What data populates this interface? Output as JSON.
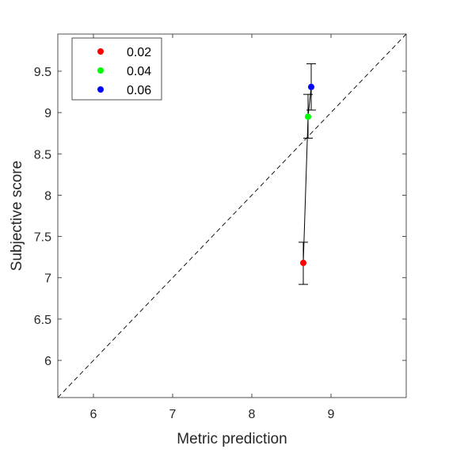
{
  "chart_data": {
    "type": "scatter",
    "xlabel": "Metric prediction",
    "ylabel": "Subjective score",
    "xlim": [
      5.55,
      9.95
    ],
    "ylim": [
      5.55,
      9.95
    ],
    "xticks": [
      6,
      7,
      8,
      9
    ],
    "yticks": [
      6,
      6.5,
      7,
      7.5,
      8,
      8.5,
      9,
      9.5
    ],
    "xtick_labels": [
      "6",
      "7",
      "8",
      "9"
    ],
    "ytick_labels": [
      "6",
      "6.5",
      "7",
      "7.5",
      "8",
      "8.5",
      "9",
      "9.5"
    ],
    "grid": false,
    "legend_position": "top-left",
    "series": [
      {
        "name": "0.02",
        "color": "#ff0000",
        "x": 8.65,
        "y": 7.18,
        "err_low": 6.92,
        "err_high": 7.43
      },
      {
        "name": "0.04",
        "color": "#00ff00",
        "x": 8.71,
        "y": 8.95,
        "err_low": 8.69,
        "err_high": 9.22
      },
      {
        "name": "0.06",
        "color": "#0000ff",
        "x": 8.75,
        "y": 9.31,
        "err_low": 9.03,
        "err_high": 9.59
      }
    ],
    "diagonal_line": {
      "style": "dashed",
      "color": "#000000"
    },
    "connecting_line": {
      "color": "#000000"
    }
  }
}
